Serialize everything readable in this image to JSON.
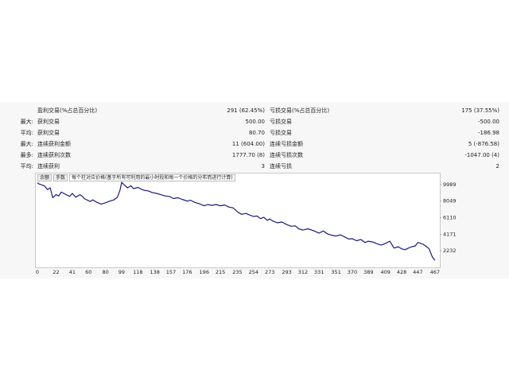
{
  "stats": {
    "rows": [
      {
        "pre": "",
        "label": "盈利交易(%占总百分比)",
        "value": "291 (62.45%)",
        "label2": "亏损交易(%占总百分比)",
        "value2": "175 (37.55%)"
      },
      {
        "pre": "最大:",
        "label": "获利交易",
        "value": "500.00",
        "label2": "亏损交易",
        "value2": "-500.00"
      },
      {
        "pre": "平均:",
        "label": "获利交易",
        "value": "80.70",
        "label2": "亏损交易",
        "value2": "-186.98"
      },
      {
        "pre": "最大:",
        "label": "连续获利金额",
        "value": "11 (604.00)",
        "label2": "连续亏损金额",
        "value2": "5 (-876.58)"
      },
      {
        "pre": "最多:",
        "label": "连续获利次数",
        "value": "1777.70 (8)",
        "label2": "连续亏损次数",
        "value2": "-1047.00 (4)"
      },
      {
        "pre": "平均:",
        "label": "连续获利",
        "value": "3",
        "label2": "连续亏损",
        "value2": "2"
      }
    ]
  },
  "chart_tabs": {
    "tab1": "余额",
    "tab2": "手数",
    "description": "每个柱对应价格(基于所有可利用的最小时段和每一个价格的分布而进行计算)"
  },
  "chart_data": {
    "type": "line",
    "line_color": "#1a1a7a",
    "ylim": [
      560,
      10350
    ],
    "y_ticks": [
      9989,
      8049,
      6110,
      4171,
      2232
    ],
    "xlim": [
      0,
      470
    ],
    "x_ticks": [
      "0",
      "22",
      "41",
      "60",
      "80",
      "99",
      "118",
      "138",
      "157",
      "176",
      "196",
      "215",
      "235",
      "254",
      "273",
      "293",
      "312",
      "331",
      "351",
      "370",
      "389",
      "409",
      "428",
      "447",
      "467"
    ],
    "x": [
      0,
      2,
      5,
      8,
      12,
      15,
      18,
      22,
      25,
      28,
      33,
      38,
      41,
      45,
      50,
      53,
      55,
      58,
      62,
      65,
      70,
      75,
      80,
      85,
      90,
      94,
      97,
      99,
      102,
      106,
      110,
      113,
      118,
      122,
      126,
      130,
      135,
      140,
      145,
      150,
      155,
      160,
      165,
      170,
      176,
      180,
      185,
      190,
      196,
      200,
      205,
      210,
      215,
      220,
      225,
      230,
      235,
      240,
      245,
      250,
      254,
      258,
      262,
      266,
      270,
      273,
      277,
      282,
      287,
      293,
      298,
      303,
      307,
      312,
      318,
      324,
      331,
      336,
      341,
      346,
      351,
      356,
      361,
      366,
      370,
      375,
      380,
      385,
      389,
      394,
      399,
      404,
      409,
      414,
      419,
      424,
      428,
      432,
      436,
      440,
      444,
      447,
      452,
      456,
      460,
      464,
      467
    ],
    "y": [
      10200,
      10050,
      9950,
      9850,
      9400,
      9600,
      8450,
      8800,
      8650,
      9100,
      8850,
      8600,
      8950,
      8500,
      8800,
      8600,
      8350,
      8200,
      8000,
      8200,
      7900,
      7700,
      7850,
      8050,
      8200,
      8500,
      9300,
      10250,
      9950,
      9600,
      9850,
      9500,
      9650,
      9450,
      9300,
      9250,
      9050,
      8950,
      8800,
      8650,
      8600,
      8350,
      8450,
      8250,
      8050,
      8150,
      7900,
      7750,
      7500,
      7650,
      7550,
      7650,
      7500,
      7600,
      7350,
      7250,
      6800,
      6500,
      6600,
      6400,
      6250,
      6300,
      6000,
      6150,
      5800,
      5950,
      5700,
      5500,
      5600,
      5300,
      5100,
      5150,
      4800,
      4650,
      4800,
      4600,
      4300,
      4550,
      4200,
      4050,
      3950,
      4100,
      3850,
      3600,
      3650,
      3400,
      3550,
      3200,
      3350,
      3250,
      3050,
      2900,
      3100,
      3350,
      2550,
      2700,
      2450,
      2350,
      2550,
      2700,
      2800,
      3200,
      3050,
      2800,
      2500,
      1500,
      1100
    ]
  }
}
